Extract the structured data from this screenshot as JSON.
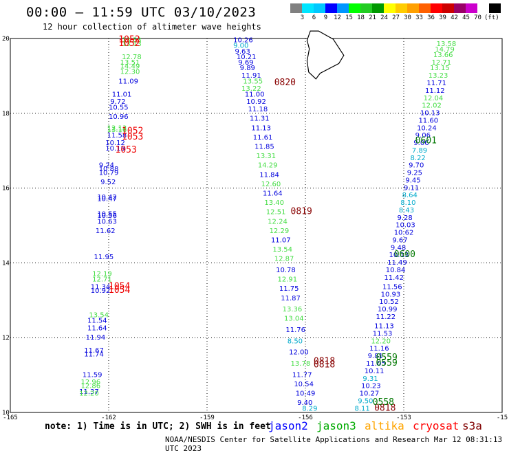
{
  "header": {
    "title": "00:00 — 11:59 UTC 03/10/2023",
    "subtitle": "12 hour collection of altimeter wave heights",
    "colorbar": {
      "colors": [
        "#808080",
        "#00e5ff",
        "#00c8ff",
        "#0000ff",
        "#0096ff",
        "#00ff00",
        "#22cc22",
        "#009900",
        "#ffff00",
        "#ffcc00",
        "#ffa000",
        "#ff6000",
        "#ff0000",
        "#cc0000",
        "#990066",
        "#cc00cc",
        "#ffffff",
        "#000000"
      ],
      "labels": [
        "3",
        "6",
        "9",
        "12",
        "15",
        "18",
        "21",
        "24",
        "27",
        "30",
        "33",
        "36",
        "39",
        "42",
        "45",
        "70"
      ],
      "unit": "(ft)"
    }
  },
  "map": {
    "lon_range": [
      -165,
      -150
    ],
    "lat_range": [
      10,
      20
    ],
    "lon_ticks": [
      "-165",
      "-162",
      "-159",
      "-156",
      "-153",
      "-15"
    ],
    "lat_ticks": [
      "20",
      "18",
      "16",
      "14",
      "12",
      "10"
    ],
    "tracks": [
      {
        "lon": -161.6,
        "lat": 19.9,
        "v": "13.53",
        "c": "#44dd44"
      },
      {
        "lon": -161.6,
        "lat": 19.8,
        "v": "13.13",
        "c": "#44dd44"
      },
      {
        "lon": -161.6,
        "lat": 19.45,
        "v": "12.78",
        "c": "#44dd44"
      },
      {
        "lon": -161.65,
        "lat": 19.3,
        "v": "13.51",
        "c": "#44dd44"
      },
      {
        "lon": -161.65,
        "lat": 19.2,
        "v": "14.49",
        "c": "#44dd44"
      },
      {
        "lon": -161.65,
        "lat": 19.05,
        "v": "12.30",
        "c": "#44dd44"
      },
      {
        "lon": -161.7,
        "lat": 18.8,
        "v": "11.09",
        "c": "#0000dd"
      },
      {
        "lon": -161.9,
        "lat": 18.45,
        "v": "11.01",
        "c": "#0000dd"
      },
      {
        "lon": -161.95,
        "lat": 18.25,
        "v": "9.72",
        "c": "#0000dd"
      },
      {
        "lon": -162.0,
        "lat": 18.1,
        "v": "10.55",
        "c": "#0000dd"
      },
      {
        "lon": -162.0,
        "lat": 17.85,
        "v": "10.96",
        "c": "#0000dd"
      },
      {
        "lon": -162.05,
        "lat": 17.55,
        "v": "12.13",
        "c": "#44dd44"
      },
      {
        "lon": -162.05,
        "lat": 17.5,
        "v": "13.16",
        "c": "#44dd44"
      },
      {
        "lon": -162.05,
        "lat": 17.35,
        "v": "11.58",
        "c": "#0000dd"
      },
      {
        "lon": -162.1,
        "lat": 17.15,
        "v": "10.12",
        "c": "#0000dd"
      },
      {
        "lon": -162.1,
        "lat": 17.0,
        "v": "10.18",
        "c": "#0000dd"
      },
      {
        "lon": -162.3,
        "lat": 16.55,
        "v": "9.24",
        "c": "#0000dd"
      },
      {
        "lon": -162.3,
        "lat": 16.45,
        "v": "10.88",
        "c": "#0000dd"
      },
      {
        "lon": -162.3,
        "lat": 16.35,
        "v": "10.79",
        "c": "#0000dd"
      },
      {
        "lon": -162.25,
        "lat": 16.1,
        "v": "9.52",
        "c": "#0000dd"
      },
      {
        "lon": -162.35,
        "lat": 15.7,
        "v": "10.42",
        "c": "#0000dd"
      },
      {
        "lon": -162.35,
        "lat": 15.65,
        "v": "10.47",
        "c": "#0000dd"
      },
      {
        "lon": -162.35,
        "lat": 15.25,
        "v": "10.55",
        "c": "#0000dd"
      },
      {
        "lon": -162.35,
        "lat": 15.2,
        "v": "10.56",
        "c": "#0000dd"
      },
      {
        "lon": -162.35,
        "lat": 15.05,
        "v": "10.63",
        "c": "#0000dd"
      },
      {
        "lon": -162.4,
        "lat": 14.8,
        "v": "11.62",
        "c": "#0000dd"
      },
      {
        "lon": -162.45,
        "lat": 14.1,
        "v": "11.95",
        "c": "#0000dd"
      },
      {
        "lon": -162.5,
        "lat": 13.65,
        "v": "12.19",
        "c": "#44dd44"
      },
      {
        "lon": -162.5,
        "lat": 13.5,
        "v": "12.71",
        "c": "#44dd44"
      },
      {
        "lon": -162.55,
        "lat": 13.3,
        "v": "11.34",
        "c": "#0000dd"
      },
      {
        "lon": -162.55,
        "lat": 13.2,
        "v": "10.92",
        "c": "#0000dd"
      },
      {
        "lon": -162.6,
        "lat": 12.55,
        "v": "13.54",
        "c": "#44dd44"
      },
      {
        "lon": -162.65,
        "lat": 12.4,
        "v": "11.54",
        "c": "#0000dd"
      },
      {
        "lon": -162.65,
        "lat": 12.2,
        "v": "11.64",
        "c": "#0000dd"
      },
      {
        "lon": -162.7,
        "lat": 11.95,
        "v": "11.94",
        "c": "#0000dd"
      },
      {
        "lon": -162.75,
        "lat": 11.6,
        "v": "11.67",
        "c": "#0000dd"
      },
      {
        "lon": -162.75,
        "lat": 11.5,
        "v": "11.74",
        "c": "#0000dd"
      },
      {
        "lon": -162.8,
        "lat": 10.95,
        "v": "11.59",
        "c": "#0000dd"
      },
      {
        "lon": -162.85,
        "lat": 10.75,
        "v": "12.96",
        "c": "#44dd44"
      },
      {
        "lon": -162.85,
        "lat": 10.65,
        "v": "12.86",
        "c": "#44dd44"
      },
      {
        "lon": -162.9,
        "lat": 10.5,
        "v": "11.37",
        "c": "#0000dd"
      },
      {
        "lon": -162.9,
        "lat": 10.45,
        "v": "12.20",
        "c": "#44dd44"
      },
      {
        "lon": -158.2,
        "lat": 19.9,
        "v": "10.26",
        "c": "#0000dd"
      },
      {
        "lon": -158.2,
        "lat": 19.75,
        "v": "9.00",
        "c": "#00aacc"
      },
      {
        "lon": -158.15,
        "lat": 19.6,
        "v": "9.63",
        "c": "#0000dd"
      },
      {
        "lon": -158.1,
        "lat": 19.45,
        "v": "10.21",
        "c": "#0000dd"
      },
      {
        "lon": -158.05,
        "lat": 19.3,
        "v": "9.69",
        "c": "#0000dd"
      },
      {
        "lon": -158.0,
        "lat": 19.15,
        "v": "9.89",
        "c": "#0000dd"
      },
      {
        "lon": -157.95,
        "lat": 18.95,
        "v": "11.91",
        "c": "#0000dd"
      },
      {
        "lon": -157.9,
        "lat": 18.8,
        "v": "13.55",
        "c": "#44dd44"
      },
      {
        "lon": -157.95,
        "lat": 18.6,
        "v": "13.22",
        "c": "#44dd44"
      },
      {
        "lon": -157.85,
        "lat": 18.45,
        "v": "11.00",
        "c": "#0000dd"
      },
      {
        "lon": -157.8,
        "lat": 18.25,
        "v": "10.92",
        "c": "#0000dd"
      },
      {
        "lon": -157.75,
        "lat": 18.05,
        "v": "11.18",
        "c": "#0000dd"
      },
      {
        "lon": -157.7,
        "lat": 17.8,
        "v": "11.31",
        "c": "#0000dd"
      },
      {
        "lon": -157.65,
        "lat": 17.55,
        "v": "11.13",
        "c": "#0000dd"
      },
      {
        "lon": -157.6,
        "lat": 17.3,
        "v": "11.61",
        "c": "#0000dd"
      },
      {
        "lon": -157.55,
        "lat": 17.05,
        "v": "11.85",
        "c": "#0000dd"
      },
      {
        "lon": -157.5,
        "lat": 16.8,
        "v": "13.31",
        "c": "#44dd44"
      },
      {
        "lon": -157.45,
        "lat": 16.55,
        "v": "14.29",
        "c": "#44dd44"
      },
      {
        "lon": -157.4,
        "lat": 16.3,
        "v": "11.84",
        "c": "#0000dd"
      },
      {
        "lon": -157.35,
        "lat": 16.05,
        "v": "12.60",
        "c": "#44dd44"
      },
      {
        "lon": -157.3,
        "lat": 15.8,
        "v": "11.64",
        "c": "#0000dd"
      },
      {
        "lon": -157.25,
        "lat": 15.55,
        "v": "13.40",
        "c": "#44dd44"
      },
      {
        "lon": -157.2,
        "lat": 15.3,
        "v": "12.51",
        "c": "#44dd44"
      },
      {
        "lon": -157.15,
        "lat": 15.05,
        "v": "12.24",
        "c": "#44dd44"
      },
      {
        "lon": -157.1,
        "lat": 14.8,
        "v": "12.29",
        "c": "#44dd44"
      },
      {
        "lon": -157.05,
        "lat": 14.55,
        "v": "11.07",
        "c": "#0000dd"
      },
      {
        "lon": -157.0,
        "lat": 14.3,
        "v": "13.54",
        "c": "#44dd44"
      },
      {
        "lon": -156.95,
        "lat": 14.05,
        "v": "12.87",
        "c": "#44dd44"
      },
      {
        "lon": -156.9,
        "lat": 13.75,
        "v": "10.78",
        "c": "#0000dd"
      },
      {
        "lon": -156.85,
        "lat": 13.5,
        "v": "12.91",
        "c": "#44dd44"
      },
      {
        "lon": -156.8,
        "lat": 13.25,
        "v": "11.75",
        "c": "#0000dd"
      },
      {
        "lon": -156.75,
        "lat": 13.0,
        "v": "11.87",
        "c": "#0000dd"
      },
      {
        "lon": -156.7,
        "lat": 12.7,
        "v": "13.36",
        "c": "#44dd44"
      },
      {
        "lon": -156.65,
        "lat": 12.45,
        "v": "13.04",
        "c": "#44dd44"
      },
      {
        "lon": -156.6,
        "lat": 12.15,
        "v": "11.76",
        "c": "#0000dd"
      },
      {
        "lon": -156.55,
        "lat": 11.85,
        "v": "8.50",
        "c": "#00aacc"
      },
      {
        "lon": -156.5,
        "lat": 11.55,
        "v": "12.00",
        "c": "#0000dd"
      },
      {
        "lon": -156.45,
        "lat": 11.25,
        "v": "13.78",
        "c": "#44dd44"
      },
      {
        "lon": -156.4,
        "lat": 10.95,
        "v": "11.77",
        "c": "#0000dd"
      },
      {
        "lon": -156.35,
        "lat": 10.7,
        "v": "10.54",
        "c": "#0000dd"
      },
      {
        "lon": -156.3,
        "lat": 10.45,
        "v": "10.49",
        "c": "#0000dd"
      },
      {
        "lon": -156.25,
        "lat": 10.2,
        "v": "9.40",
        "c": "#0000dd"
      },
      {
        "lon": -156.1,
        "lat": 10.05,
        "v": "8.29",
        "c": "#00aacc"
      },
      {
        "lon": -152.0,
        "lat": 19.8,
        "v": "13.58",
        "c": "#44dd44"
      },
      {
        "lon": -152.05,
        "lat": 19.65,
        "v": "14.79",
        "c": "#44dd44"
      },
      {
        "lon": -152.1,
        "lat": 19.5,
        "v": "13.66",
        "c": "#44dd44"
      },
      {
        "lon": -152.15,
        "lat": 19.3,
        "v": "12.71",
        "c": "#44dd44"
      },
      {
        "lon": -152.2,
        "lat": 19.15,
        "v": "13.15",
        "c": "#44dd44"
      },
      {
        "lon": -152.25,
        "lat": 18.95,
        "v": "13.23",
        "c": "#44dd44"
      },
      {
        "lon": -152.3,
        "lat": 18.75,
        "v": "11.71",
        "c": "#0000dd"
      },
      {
        "lon": -152.35,
        "lat": 18.55,
        "v": "11.12",
        "c": "#0000dd"
      },
      {
        "lon": -152.4,
        "lat": 18.35,
        "v": "12.04",
        "c": "#44dd44"
      },
      {
        "lon": -152.45,
        "lat": 18.15,
        "v": "12.02",
        "c": "#44dd44"
      },
      {
        "lon": -152.5,
        "lat": 17.95,
        "v": "10.13",
        "c": "#0000dd"
      },
      {
        "lon": -152.55,
        "lat": 17.75,
        "v": "11.60",
        "c": "#0000dd"
      },
      {
        "lon": -152.6,
        "lat": 17.55,
        "v": "10.24",
        "c": "#0000dd"
      },
      {
        "lon": -152.65,
        "lat": 17.35,
        "v": "9.06",
        "c": "#0000dd"
      },
      {
        "lon": -152.7,
        "lat": 17.15,
        "v": "9.06",
        "c": "#0000dd"
      },
      {
        "lon": -152.75,
        "lat": 16.95,
        "v": "7.89",
        "c": "#00aacc"
      },
      {
        "lon": -152.8,
        "lat": 16.75,
        "v": "8.22",
        "c": "#00aacc"
      },
      {
        "lon": -152.85,
        "lat": 16.55,
        "v": "9.70",
        "c": "#0000dd"
      },
      {
        "lon": -152.9,
        "lat": 16.35,
        "v": "9.25",
        "c": "#0000dd"
      },
      {
        "lon": -152.95,
        "lat": 16.15,
        "v": "9.45",
        "c": "#0000dd"
      },
      {
        "lon": -153.0,
        "lat": 15.95,
        "v": "9.11",
        "c": "#0000dd"
      },
      {
        "lon": -153.05,
        "lat": 15.75,
        "v": "8.64",
        "c": "#00aacc"
      },
      {
        "lon": -153.1,
        "lat": 15.55,
        "v": "8.10",
        "c": "#00aacc"
      },
      {
        "lon": -153.15,
        "lat": 15.35,
        "v": "8.43",
        "c": "#00aacc"
      },
      {
        "lon": -153.2,
        "lat": 15.15,
        "v": "9.28",
        "c": "#0000dd"
      },
      {
        "lon": -153.25,
        "lat": 14.95,
        "v": "10.03",
        "c": "#0000dd"
      },
      {
        "lon": -153.3,
        "lat": 14.75,
        "v": "10.62",
        "c": "#0000dd"
      },
      {
        "lon": -153.35,
        "lat": 14.55,
        "v": "9.67",
        "c": "#0000dd"
      },
      {
        "lon": -153.4,
        "lat": 14.35,
        "v": "9.48",
        "c": "#0000dd"
      },
      {
        "lon": -153.45,
        "lat": 14.15,
        "v": "10.13",
        "c": "#0000dd"
      },
      {
        "lon": -153.5,
        "lat": 13.95,
        "v": "11.49",
        "c": "#0000dd"
      },
      {
        "lon": -153.55,
        "lat": 13.75,
        "v": "10.84",
        "c": "#0000dd"
      },
      {
        "lon": -153.6,
        "lat": 13.55,
        "v": "11.42",
        "c": "#0000dd"
      },
      {
        "lon": -153.65,
        "lat": 13.3,
        "v": "11.56",
        "c": "#0000dd"
      },
      {
        "lon": -153.7,
        "lat": 13.1,
        "v": "10.93",
        "c": "#0000dd"
      },
      {
        "lon": -153.75,
        "lat": 12.9,
        "v": "10.52",
        "c": "#0000dd"
      },
      {
        "lon": -153.8,
        "lat": 12.7,
        "v": "10.99",
        "c": "#0000dd"
      },
      {
        "lon": -153.85,
        "lat": 12.5,
        "v": "11.22",
        "c": "#0000dd"
      },
      {
        "lon": -153.9,
        "lat": 12.25,
        "v": "11.13",
        "c": "#0000dd"
      },
      {
        "lon": -153.95,
        "lat": 12.05,
        "v": "11.53",
        "c": "#0000dd"
      },
      {
        "lon": -154.0,
        "lat": 11.85,
        "v": "12.20",
        "c": "#44dd44"
      },
      {
        "lon": -154.05,
        "lat": 11.65,
        "v": "11.16",
        "c": "#0000dd"
      },
      {
        "lon": -154.1,
        "lat": 11.45,
        "v": "9.81",
        "c": "#0000dd"
      },
      {
        "lon": -154.15,
        "lat": 11.25,
        "v": "11.05",
        "c": "#0000dd"
      },
      {
        "lon": -154.2,
        "lat": 11.05,
        "v": "10.11",
        "c": "#0000dd"
      },
      {
        "lon": -154.25,
        "lat": 10.85,
        "v": "9.31",
        "c": "#00aacc"
      },
      {
        "lon": -154.3,
        "lat": 10.65,
        "v": "10.23",
        "c": "#0000dd"
      },
      {
        "lon": -154.35,
        "lat": 10.45,
        "v": "10.27",
        "c": "#0000dd"
      },
      {
        "lon": -154.4,
        "lat": 10.25,
        "v": "9.50",
        "c": "#00aacc"
      },
      {
        "lon": -154.5,
        "lat": 10.05,
        "v": "8.11",
        "c": "#00aacc"
      }
    ],
    "time_labels": [
      {
        "lon": -161.7,
        "lat": 19.9,
        "t": "1052",
        "c": "#ee0000"
      },
      {
        "lon": -161.7,
        "lat": 19.8,
        "t": "1052",
        "c": "#ee0000"
      },
      {
        "lon": -161.6,
        "lat": 17.45,
        "t": "1052",
        "c": "#ee0000"
      },
      {
        "lon": -161.6,
        "lat": 17.3,
        "t": "1053",
        "c": "#ee0000"
      },
      {
        "lon": -161.8,
        "lat": 16.95,
        "t": "1053",
        "c": "#ee0000"
      },
      {
        "lon": -162.0,
        "lat": 13.3,
        "t": "1054",
        "c": "#ee0000"
      },
      {
        "lon": -162.0,
        "lat": 13.2,
        "t": "1054",
        "c": "#ee0000"
      },
      {
        "lon": -156.95,
        "lat": 18.75,
        "t": "0820",
        "c": "#880000"
      },
      {
        "lon": -156.45,
        "lat": 15.3,
        "t": "0819",
        "c": "#880000"
      },
      {
        "lon": -155.75,
        "lat": 11.3,
        "t": "0818",
        "c": "#880000"
      },
      {
        "lon": -155.75,
        "lat": 11.2,
        "t": "0818",
        "c": "#880000"
      },
      {
        "lon": -153.9,
        "lat": 10.05,
        "t": "0818",
        "c": "#880000"
      },
      {
        "lon": -152.65,
        "lat": 17.2,
        "t": "0601",
        "c": "#007700"
      },
      {
        "lon": -153.3,
        "lat": 14.15,
        "t": "0600",
        "c": "#007700"
      },
      {
        "lon": -153.85,
        "lat": 11.4,
        "t": "0559",
        "c": "#007700"
      },
      {
        "lon": -153.85,
        "lat": 11.25,
        "t": "0559",
        "c": "#007700"
      },
      {
        "lon": -153.95,
        "lat": 10.2,
        "t": "0558",
        "c": "#007700"
      }
    ],
    "island": [
      [
        -155.85,
        20.2
      ],
      [
        -155.6,
        20.2
      ],
      [
        -155.15,
        19.98
      ],
      [
        -154.83,
        19.55
      ],
      [
        -154.98,
        19.33
      ],
      [
        -155.55,
        19.07
      ],
      [
        -155.68,
        18.92
      ],
      [
        -155.9,
        19.1
      ],
      [
        -155.95,
        19.4
      ],
      [
        -155.88,
        19.72
      ],
      [
        -155.95,
        19.95
      ]
    ]
  },
  "footer": {
    "note": "note: 1) Time is in UTC; 2) SWH is in feet",
    "satellites": [
      {
        "name": "jason2",
        "color": "#0000ff"
      },
      {
        "name": "jason3",
        "color": "#00aa00"
      },
      {
        "name": "altika",
        "color": "#ffa500"
      },
      {
        "name": "cryosat",
        "color": "#ff0000"
      },
      {
        "name": "s3a",
        "color": "#800000"
      }
    ],
    "credit": "NOAA/NESDIS Center for Satellite Applications and Research   Mar 12 08:31:13 UTC 2023"
  }
}
